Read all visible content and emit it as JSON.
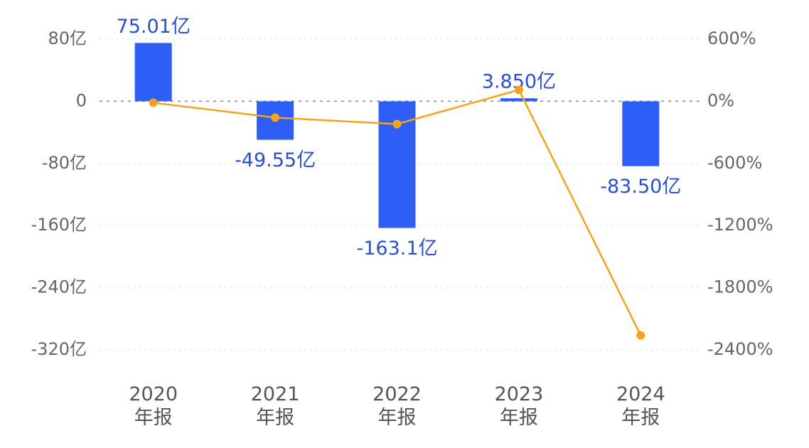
{
  "chart_data": {
    "type": "bar",
    "categories": [
      "2020年报",
      "2021年报",
      "2022年报",
      "2023年报",
      "2024年报"
    ],
    "values": [
      75.01,
      -49.55,
      -163.1,
      3.85,
      -83.5
    ],
    "value_labels": [
      "75.01亿",
      "-49.55亿",
      "-163.1亿",
      "3.850亿",
      "-83.50亿"
    ],
    "color": "#2f5ef6",
    "ylim": [
      -320,
      80
    ],
    "yticks": [
      {
        "value": 80,
        "label": "80亿"
      },
      0,
      {
        "value": -80,
        "label": "-80亿"
      },
      {
        "value": -160,
        "label": "-160亿"
      },
      {
        "value": -240,
        "label": "-240亿"
      },
      {
        "value": -320,
        "label": "-320亿"
      }
    ],
    "y2lim": [
      -2400,
      600
    ],
    "y2ticks": [
      {
        "value": 600,
        "label": "600%"
      },
      {
        "value": 0,
        "label": "0%"
      },
      {
        "value": -600,
        "label": "-600%"
      },
      {
        "value": -1200,
        "label": "-1200%"
      },
      {
        "value": -1800,
        "label": "-1800%"
      },
      {
        "value": -2400,
        "label": "-2400%"
      }
    ],
    "series": [
      {
        "type": "line",
        "axis": "y2",
        "color": "#f5a31a",
        "values": [
          -14,
          -158,
          -220,
          110,
          -2260
        ]
      }
    ],
    "grid": true
  }
}
